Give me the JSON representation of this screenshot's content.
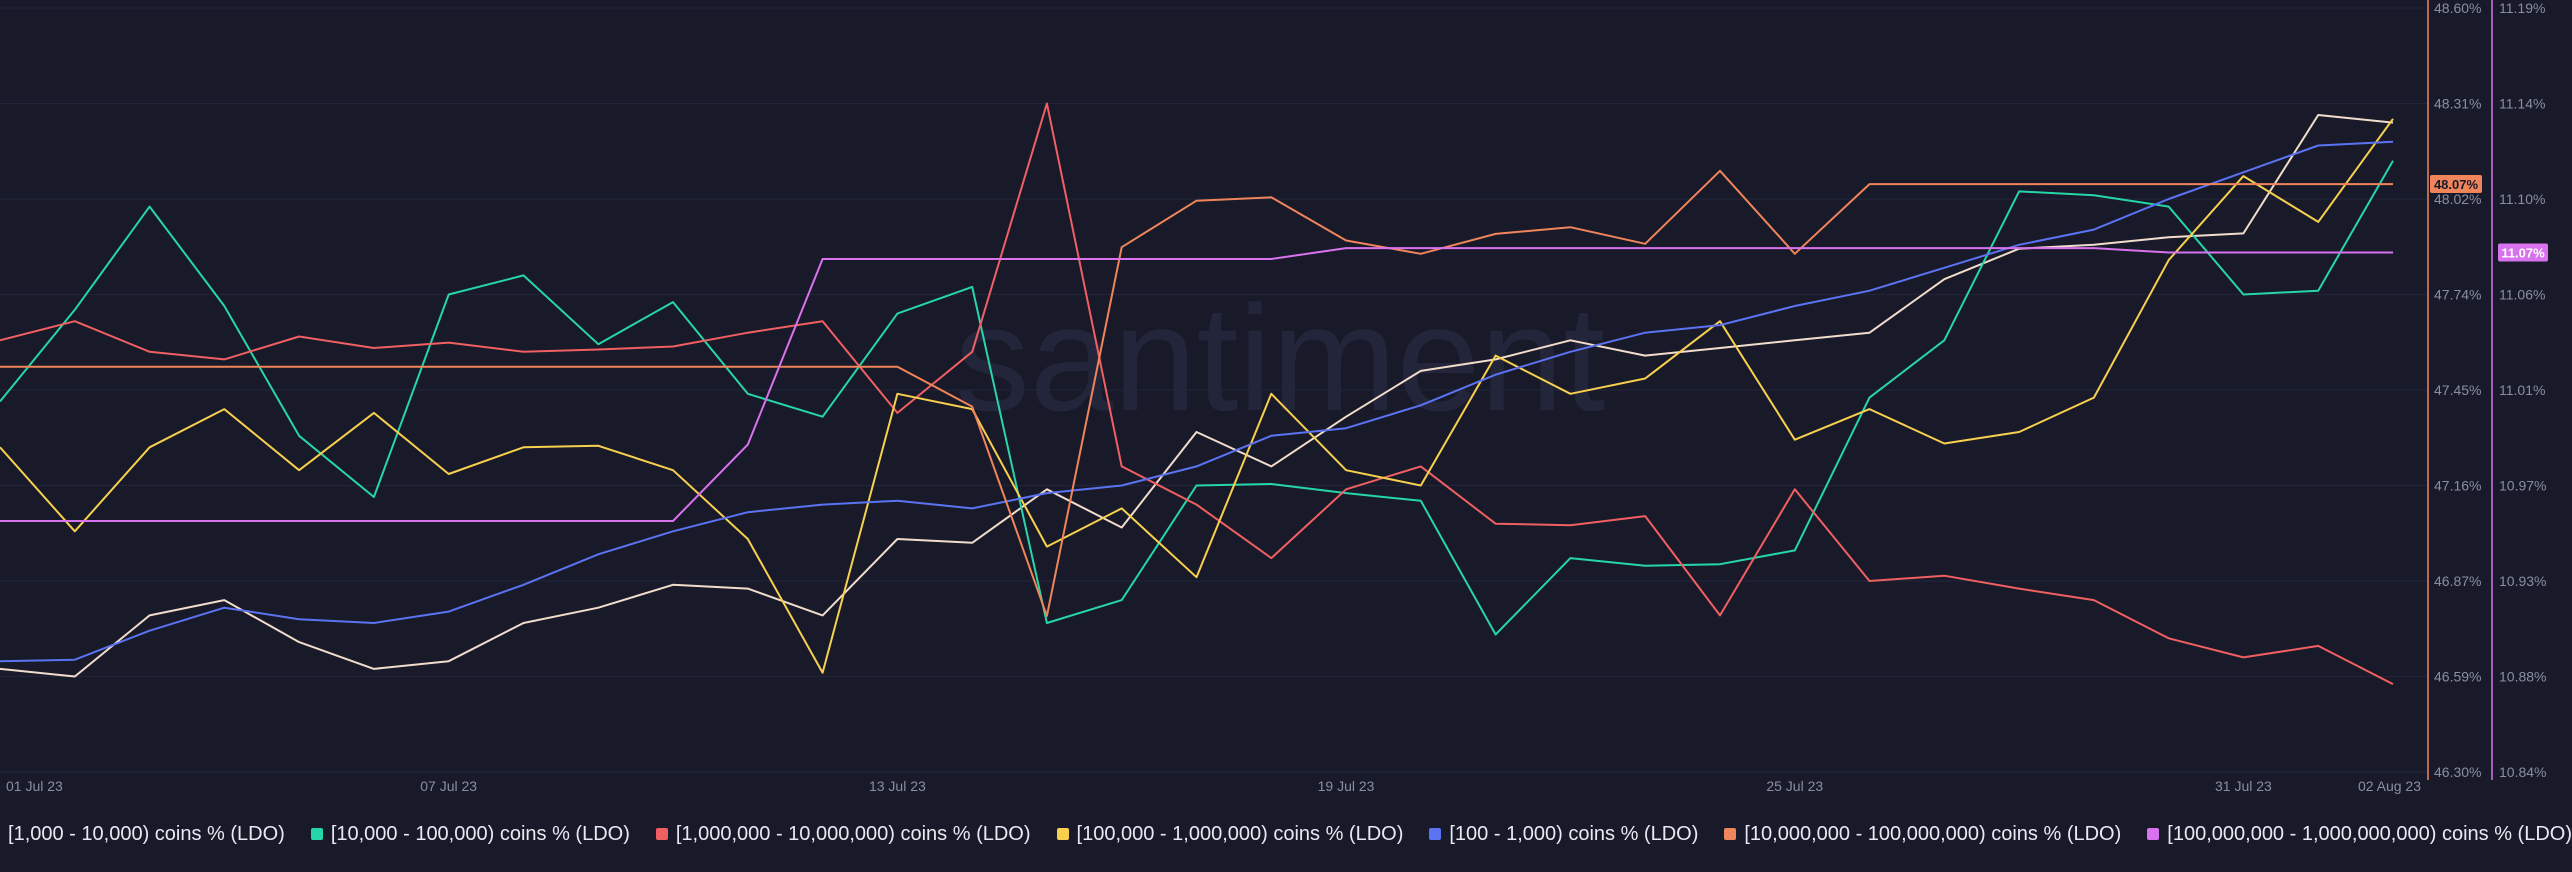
{
  "watermark": "santiment",
  "chart_data": {
    "type": "line",
    "x": [
      "01 Jul 23",
      "02 Jul 23",
      "03 Jul 23",
      "04 Jul 23",
      "05 Jul 23",
      "06 Jul 23",
      "07 Jul 23",
      "08 Jul 23",
      "09 Jul 23",
      "10 Jul 23",
      "11 Jul 23",
      "12 Jul 23",
      "13 Jul 23",
      "14 Jul 23",
      "15 Jul 23",
      "16 Jul 23",
      "17 Jul 23",
      "18 Jul 23",
      "19 Jul 23",
      "20 Jul 23",
      "21 Jul 23",
      "22 Jul 23",
      "23 Jul 23",
      "24 Jul 23",
      "25 Jul 23",
      "26 Jul 23",
      "27 Jul 23",
      "28 Jul 23",
      "29 Jul 23",
      "30 Jul 23",
      "31 Jul 23",
      "01 Aug 23",
      "02 Aug 23"
    ],
    "x_ticks": [
      "01 Jul 23",
      "07 Jul 23",
      "13 Jul 23",
      "19 Jul 23",
      "25 Jul 23",
      "31 Jul 23",
      "02 Aug 23"
    ],
    "axes": {
      "left": {
        "name": "[10,000,000 - 100,000,000) coins % (LDO)",
        "ticks": [
          "48.60%",
          "48.31%",
          "48.02%",
          "47.74%",
          "47.45%",
          "47.16%",
          "46.87%",
          "46.59%",
          "46.30%"
        ],
        "ylim": [
          46.3,
          48.6
        ],
        "color": "#f0845a",
        "last_label": "48.07%"
      },
      "right": {
        "name": "[100,000,000 - 1,000,000,000) coins % (LDO)",
        "ticks": [
          "11.19%",
          "11.14%",
          "11.10%",
          "11.06%",
          "11.01%",
          "10.97%",
          "10.93%",
          "10.88%",
          "10.84%"
        ],
        "ylim": [
          10.84,
          11.19
        ],
        "color": "#d972ee",
        "last_label": "11.07%"
      }
    },
    "series": [
      {
        "name": "[1,000 - 10,000) coins % (LDO)",
        "color": "#f2dccb",
        "level": [
          0.135,
          0.125,
          0.205,
          0.225,
          0.17,
          0.135,
          0.145,
          0.195,
          0.215,
          0.245,
          0.24,
          0.205,
          0.305,
          0.3,
          0.37,
          0.32,
          0.445,
          0.4,
          0.465,
          0.525,
          0.54,
          0.565,
          0.545,
          0.555,
          0.565,
          0.575,
          0.645,
          0.685,
          0.69,
          0.7,
          0.705,
          0.86,
          0.85
        ]
      },
      {
        "name": "[10,000 - 100,000) coins % (LDO)",
        "color": "#26d6a9",
        "level": [
          0.485,
          0.605,
          0.74,
          0.61,
          0.44,
          0.36,
          0.625,
          0.65,
          0.56,
          0.615,
          0.495,
          0.465,
          0.6,
          0.635,
          0.195,
          0.225,
          0.375,
          0.377,
          0.365,
          0.355,
          0.18,
          0.28,
          0.27,
          0.272,
          0.29,
          0.49,
          0.565,
          0.76,
          0.755,
          0.74,
          0.625,
          0.63,
          0.8
        ]
      },
      {
        "name": "[1,000,000 - 10,000,000) coins % (LDO)",
        "color": "#f05f62",
        "level": [
          0.565,
          0.59,
          0.55,
          0.54,
          0.57,
          0.555,
          0.562,
          0.55,
          0.553,
          0.557,
          0.575,
          0.59,
          0.47,
          0.55,
          0.875,
          0.4,
          0.35,
          0.28,
          0.37,
          0.4,
          0.325,
          0.323,
          0.335,
          0.205,
          0.37,
          0.25,
          0.257,
          0.24,
          0.225,
          0.175,
          0.15,
          0.165,
          0.115
        ]
      },
      {
        "name": "[100,000 - 1,000,000) coins % (LDO)",
        "color": "#f8d04e",
        "level": [
          0.425,
          0.315,
          0.425,
          0.475,
          0.395,
          0.47,
          0.39,
          0.425,
          0.427,
          0.395,
          0.305,
          0.13,
          0.495,
          0.475,
          0.295,
          0.345,
          0.255,
          0.495,
          0.395,
          0.375,
          0.545,
          0.495,
          0.515,
          0.59,
          0.435,
          0.475,
          0.43,
          0.445,
          0.49,
          0.67,
          0.78,
          0.72,
          0.855
        ]
      },
      {
        "name": "[100 - 1,000) coins % (LDO)",
        "color": "#5b73f2",
        "level": [
          0.145,
          0.147,
          0.185,
          0.215,
          0.2,
          0.195,
          0.21,
          0.245,
          0.285,
          0.315,
          0.34,
          0.35,
          0.355,
          0.345,
          0.365,
          0.375,
          0.4,
          0.44,
          0.45,
          0.48,
          0.52,
          0.55,
          0.575,
          0.585,
          0.61,
          0.63,
          0.66,
          0.69,
          0.71,
          0.75,
          0.785,
          0.82,
          0.825
        ]
      },
      {
        "name": "[10,000,000 - 100,000,000) coins % (LDO)",
        "color": "#f0845a",
        "axis": "left",
        "values": [
          47.52,
          47.52,
          47.52,
          47.52,
          47.52,
          47.52,
          47.52,
          47.52,
          47.52,
          47.52,
          47.52,
          47.52,
          47.52,
          47.4,
          46.77,
          47.88,
          48.02,
          48.03,
          47.9,
          47.86,
          47.92,
          47.94,
          47.89,
          48.11,
          47.86,
          48.07,
          48.07,
          48.07,
          48.07,
          48.07,
          48.07,
          48.07,
          48.07
        ]
      },
      {
        "name": "[100,000,000 - 1,000,000,000) coins % (LDO)",
        "color": "#d972ee",
        "axis": "right",
        "values": [
          10.955,
          10.955,
          10.955,
          10.955,
          10.955,
          10.955,
          10.955,
          10.955,
          10.955,
          10.955,
          10.99,
          11.075,
          11.075,
          11.075,
          11.075,
          11.075,
          11.075,
          11.075,
          11.08,
          11.08,
          11.08,
          11.08,
          11.08,
          11.08,
          11.08,
          11.08,
          11.08,
          11.08,
          11.08,
          11.078,
          11.078,
          11.078,
          11.078
        ]
      }
    ]
  }
}
